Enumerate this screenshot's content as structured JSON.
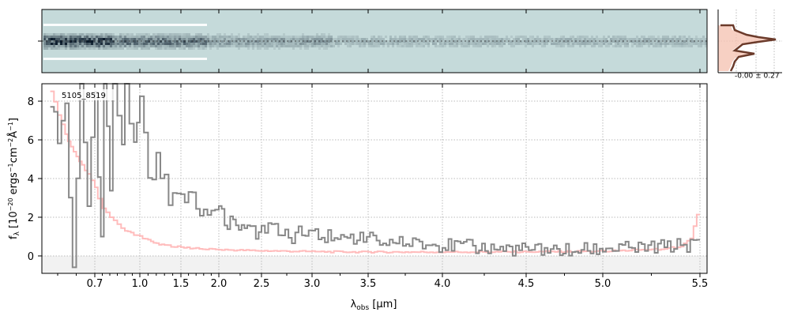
{
  "chart_data": {
    "type": "line",
    "panels": {
      "spectrum_2d": {
        "description_colors": {
          "background": "#c5dada",
          "trace": "#0a1a2a"
        }
      },
      "profile": {
        "label": "-0.00 ± 0.27",
        "line_color": "#6b3a2a",
        "fill_color": "#f5c4b4"
      },
      "spectrum_1d": {
        "object_label": "5105_8519",
        "xlabel": "λ_obs [µm]",
        "ylabel": "f_λ [10^-20 ergs^-1 cm^-2 Å^-1]",
        "x_scale": "reciprocal-like (wavelength, compressed at long λ)",
        "x_ticks": [
          "0.7",
          "1.0",
          "1.5",
          "2.0",
          "2.5",
          "3.0",
          "3.5",
          "4.0",
          "4.5",
          "5.0",
          "5.5"
        ],
        "y_ticks": [
          "0",
          "2",
          "4",
          "6",
          "8"
        ],
        "ylim": [
          -0.9,
          8.9
        ],
        "grid": true,
        "series": [
          {
            "role": "flux",
            "color": "#888888",
            "x": [
              0.58,
              0.6,
              0.62,
              0.64,
              0.66,
              0.68,
              0.7,
              0.72,
              0.74,
              0.76,
              0.78,
              0.8,
              0.82,
              0.85,
              0.88,
              0.9,
              0.93,
              0.96,
              1.0,
              1.05,
              1.1,
              1.15,
              1.2,
              1.25,
              1.3,
              1.35,
              1.4,
              1.45,
              1.5,
              1.6,
              1.7,
              1.8,
              1.9,
              2.0,
              2.1,
              2.2,
              2.3,
              2.4,
              2.5,
              2.6,
              2.7,
              2.8,
              2.9,
              3.0,
              3.2,
              3.4,
              3.6,
              3.8,
              4.0,
              4.2,
              4.4,
              4.6,
              4.8,
              5.0,
              5.2,
              5.4,
              5.5
            ],
            "y": [
              8.5,
              5.2,
              7.9,
              -0.8,
              8.6,
              3.0,
              9.0,
              4.5,
              1.0,
              9.0,
              6.8,
              3.0,
              8.6,
              7.0,
              5.5,
              8.8,
              6.2,
              5.9,
              8.5,
              5.8,
              3.9,
              4.2,
              5.3,
              3.6,
              4.3,
              2.8,
              3.2,
              3.3,
              2.9,
              3.4,
              2.4,
              2.3,
              2.0,
              2.3,
              1.8,
              1.6,
              1.5,
              1.3,
              1.2,
              1.35,
              1.1,
              1.0,
              1.2,
              1.0,
              1.05,
              0.9,
              0.75,
              0.6,
              0.55,
              0.45,
              0.35,
              0.3,
              0.3,
              0.35,
              0.4,
              0.55,
              0.6
            ]
          },
          {
            "role": "uncertainty",
            "color": "#ffbcbc",
            "x": [
              0.58,
              0.6,
              0.62,
              0.65,
              0.68,
              0.7,
              0.72,
              0.75,
              0.8,
              0.85,
              0.9,
              1.0,
              1.1,
              1.2,
              1.3,
              1.5,
              1.7,
              2.0,
              2.5,
              3.0,
              3.5,
              4.0,
              4.5,
              5.0,
              5.3,
              5.4,
              5.45,
              5.5
            ],
            "y": [
              8.6,
              7.2,
              6.3,
              5.1,
              4.2,
              3.6,
              3.0,
              2.5,
              2.0,
              1.6,
              1.3,
              1.0,
              0.8,
              0.65,
              0.55,
              0.45,
              0.38,
              0.32,
              0.27,
              0.22,
              0.2,
              0.2,
              0.21,
              0.24,
              0.35,
              0.5,
              0.9,
              2.7
            ]
          }
        ]
      }
    }
  }
}
